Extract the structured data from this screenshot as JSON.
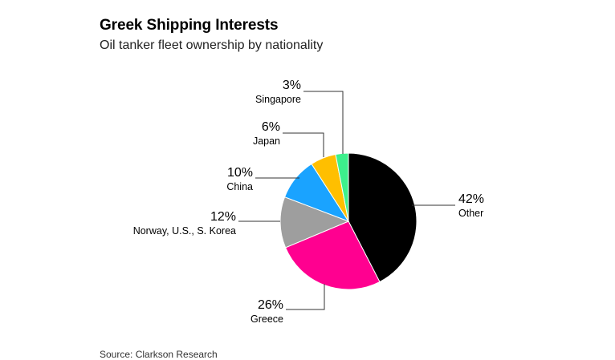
{
  "header": {
    "title": "Greek Shipping Interests",
    "subtitle": "Oil tanker fleet ownership by nationality"
  },
  "footer": {
    "source": "Source: Clarkson Research"
  },
  "chart_data": {
    "type": "pie",
    "title": "Greek Shipping Interests",
    "subtitle": "Oil tanker fleet ownership by nationality",
    "slices": [
      {
        "name": "Other",
        "value": 42,
        "label": "42%",
        "color": "#000000"
      },
      {
        "name": "Greece",
        "value": 26,
        "label": "26%",
        "color": "#ff0090"
      },
      {
        "name": "Norway, U.S., S. Korea",
        "value": 12,
        "label": "12%",
        "color": "#9e9e9e"
      },
      {
        "name": "China",
        "value": 10,
        "label": "10%",
        "color": "#1aa3ff"
      },
      {
        "name": "Japan",
        "value": 6,
        "label": "6%",
        "color": "#ffbf00"
      },
      {
        "name": "Singapore",
        "value": 3,
        "label": "3%",
        "color": "#3df08c"
      }
    ],
    "start_angle": "12 o'clock",
    "direction": "clockwise",
    "legend": "direct labels"
  }
}
